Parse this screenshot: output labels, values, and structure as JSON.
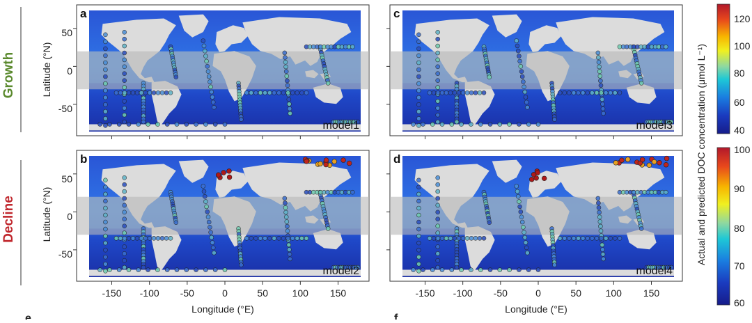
{
  "rows": [
    {
      "label": "Growth",
      "color": "#5b8a2e"
    },
    {
      "label": "Decline",
      "color": "#c0272d"
    }
  ],
  "panels": [
    {
      "letter": "a",
      "model": "model1"
    },
    {
      "letter": "b",
      "model": "model2"
    },
    {
      "letter": "c",
      "model": "model3"
    },
    {
      "letter": "d",
      "model": "model4"
    }
  ],
  "axes": {
    "ylabel": "Latitude (°N)",
    "xlabel": "Longitude (°E)",
    "xticks": [
      "-150",
      "-100",
      "-50",
      "0",
      "50",
      "100",
      "150"
    ],
    "yticks": [
      "50",
      "0",
      "-50"
    ]
  },
  "colorbar": {
    "label": "Actual and predicted DOC concentration (μmol L⁻¹)",
    "top_ticks": [
      "120",
      "100",
      "80",
      "60",
      "40"
    ],
    "bottom_ticks": [
      "100",
      "90",
      "80",
      "70",
      "60"
    ],
    "colors": [
      "#b2182b",
      "#e8481c",
      "#f7b500",
      "#f0f020",
      "#8fd8a0",
      "#1ec8d6",
      "#1a7de0",
      "#1a3bbf",
      "#161c8a"
    ]
  },
  "bottom_letters": [
    "e",
    "f"
  ],
  "chart_data": {
    "type": "heatmap",
    "xlabel": "Longitude (°E)",
    "ylabel": "Latitude (°N)",
    "xlim": [
      -180,
      180
    ],
    "ylim": [
      -80,
      85
    ],
    "panels": [
      {
        "name": "model1",
        "row": "Growth",
        "colorbar_range": [
          40,
          120
        ]
      },
      {
        "name": "model3",
        "row": "Growth",
        "colorbar_range": [
          40,
          120
        ]
      },
      {
        "name": "model2",
        "row": "Decline",
        "colorbar_range": [
          60,
          100
        ]
      },
      {
        "name": "model4",
        "row": "Decline",
        "colorbar_range": [
          60,
          100
        ]
      }
    ]
  }
}
